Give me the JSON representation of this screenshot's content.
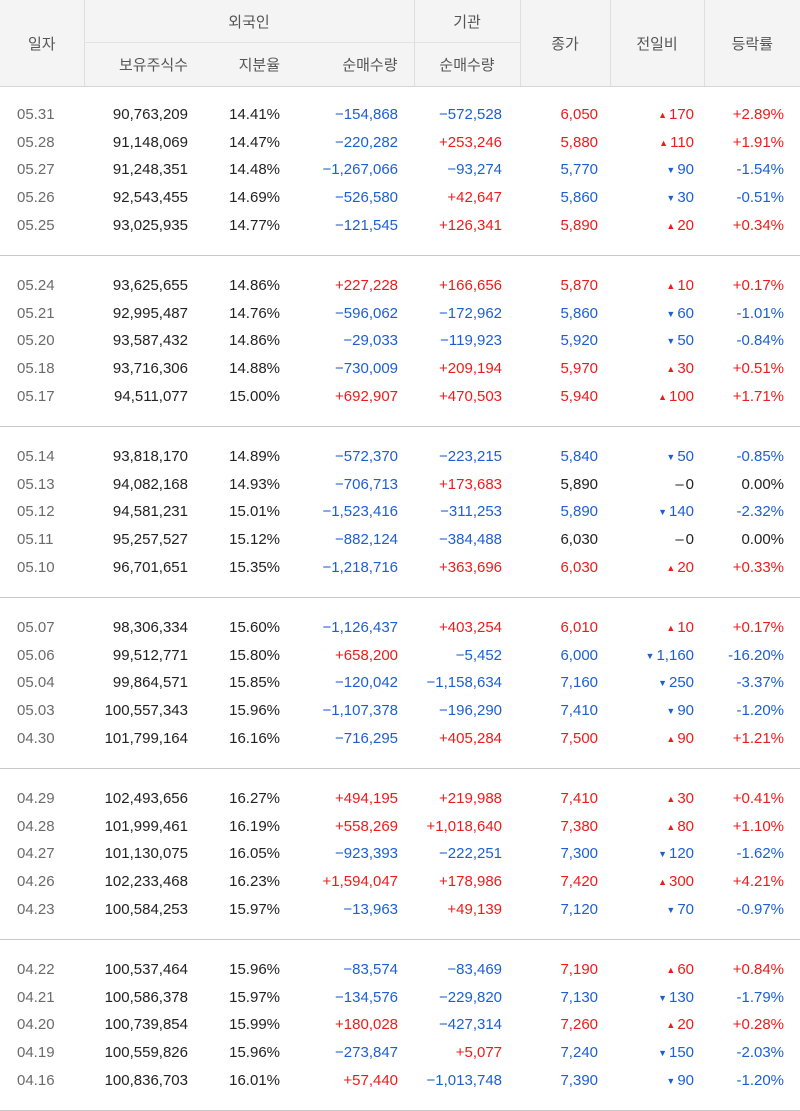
{
  "headers": {
    "date": "일자",
    "foreign": "외국인",
    "institution": "기관",
    "holdings": "보유주식수",
    "ratio": "지분율",
    "foreign_net": "순매수량",
    "inst_net": "순매수량",
    "close": "종가",
    "change": "전일비",
    "rate": "등락률"
  },
  "colors": {
    "up": "#ee1b1b",
    "down": "#1d5fd3",
    "neutral": "#222222"
  },
  "groups": [
    [
      {
        "date": "05.31",
        "holdings": "90,763,209",
        "ratio": "14.41%",
        "foreign_net": "−154,868",
        "inst_net": "−572,528",
        "close": "6,050",
        "change": "170",
        "rate": "+2.89%",
        "dir": "up"
      },
      {
        "date": "05.28",
        "holdings": "91,148,069",
        "ratio": "14.47%",
        "foreign_net": "−220,282",
        "inst_net": "+253,246",
        "close": "5,880",
        "change": "110",
        "rate": "+1.91%",
        "dir": "up"
      },
      {
        "date": "05.27",
        "holdings": "91,248,351",
        "ratio": "14.48%",
        "foreign_net": "−1,267,066",
        "inst_net": "−93,274",
        "close": "5,770",
        "change": "90",
        "rate": "-1.54%",
        "dir": "down"
      },
      {
        "date": "05.26",
        "holdings": "92,543,455",
        "ratio": "14.69%",
        "foreign_net": "−526,580",
        "inst_net": "+42,647",
        "close": "5,860",
        "change": "30",
        "rate": "-0.51%",
        "dir": "down"
      },
      {
        "date": "05.25",
        "holdings": "93,025,935",
        "ratio": "14.77%",
        "foreign_net": "−121,545",
        "inst_net": "+126,341",
        "close": "5,890",
        "change": "20",
        "rate": "+0.34%",
        "dir": "up"
      }
    ],
    [
      {
        "date": "05.24",
        "holdings": "93,625,655",
        "ratio": "14.86%",
        "foreign_net": "+227,228",
        "inst_net": "+166,656",
        "close": "5,870",
        "change": "10",
        "rate": "+0.17%",
        "dir": "up"
      },
      {
        "date": "05.21",
        "holdings": "92,995,487",
        "ratio": "14.76%",
        "foreign_net": "−596,062",
        "inst_net": "−172,962",
        "close": "5,860",
        "change": "60",
        "rate": "-1.01%",
        "dir": "down"
      },
      {
        "date": "05.20",
        "holdings": "93,587,432",
        "ratio": "14.86%",
        "foreign_net": "−29,033",
        "inst_net": "−119,923",
        "close": "5,920",
        "change": "50",
        "rate": "-0.84%",
        "dir": "down"
      },
      {
        "date": "05.18",
        "holdings": "93,716,306",
        "ratio": "14.88%",
        "foreign_net": "−730,009",
        "inst_net": "+209,194",
        "close": "5,970",
        "change": "30",
        "rate": "+0.51%",
        "dir": "up"
      },
      {
        "date": "05.17",
        "holdings": "94,511,077",
        "ratio": "15.00%",
        "foreign_net": "+692,907",
        "inst_net": "+470,503",
        "close": "5,940",
        "change": "100",
        "rate": "+1.71%",
        "dir": "up"
      }
    ],
    [
      {
        "date": "05.14",
        "holdings": "93,818,170",
        "ratio": "14.89%",
        "foreign_net": "−572,370",
        "inst_net": "−223,215",
        "close": "5,840",
        "change": "50",
        "rate": "-0.85%",
        "dir": "down"
      },
      {
        "date": "05.13",
        "holdings": "94,082,168",
        "ratio": "14.93%",
        "foreign_net": "−706,713",
        "inst_net": "+173,683",
        "close": "5,890",
        "change": "0",
        "rate": "0.00%",
        "dir": "flat"
      },
      {
        "date": "05.12",
        "holdings": "94,581,231",
        "ratio": "15.01%",
        "foreign_net": "−1,523,416",
        "inst_net": "−311,253",
        "close": "5,890",
        "change": "140",
        "rate": "-2.32%",
        "dir": "down"
      },
      {
        "date": "05.11",
        "holdings": "95,257,527",
        "ratio": "15.12%",
        "foreign_net": "−882,124",
        "inst_net": "−384,488",
        "close": "6,030",
        "change": "0",
        "rate": "0.00%",
        "dir": "flat"
      },
      {
        "date": "05.10",
        "holdings": "96,701,651",
        "ratio": "15.35%",
        "foreign_net": "−1,218,716",
        "inst_net": "+363,696",
        "close": "6,030",
        "change": "20",
        "rate": "+0.33%",
        "dir": "up"
      }
    ],
    [
      {
        "date": "05.07",
        "holdings": "98,306,334",
        "ratio": "15.60%",
        "foreign_net": "−1,126,437",
        "inst_net": "+403,254",
        "close": "6,010",
        "change": "10",
        "rate": "+0.17%",
        "dir": "up"
      },
      {
        "date": "05.06",
        "holdings": "99,512,771",
        "ratio": "15.80%",
        "foreign_net": "+658,200",
        "inst_net": "−5,452",
        "close": "6,000",
        "change": "1,160",
        "rate": "-16.20%",
        "dir": "down"
      },
      {
        "date": "05.04",
        "holdings": "99,864,571",
        "ratio": "15.85%",
        "foreign_net": "−120,042",
        "inst_net": "−1,158,634",
        "close": "7,160",
        "change": "250",
        "rate": "-3.37%",
        "dir": "down"
      },
      {
        "date": "05.03",
        "holdings": "100,557,343",
        "ratio": "15.96%",
        "foreign_net": "−1,107,378",
        "inst_net": "−196,290",
        "close": "7,410",
        "change": "90",
        "rate": "-1.20%",
        "dir": "down"
      },
      {
        "date": "04.30",
        "holdings": "101,799,164",
        "ratio": "16.16%",
        "foreign_net": "−716,295",
        "inst_net": "+405,284",
        "close": "7,500",
        "change": "90",
        "rate": "+1.21%",
        "dir": "up"
      }
    ],
    [
      {
        "date": "04.29",
        "holdings": "102,493,656",
        "ratio": "16.27%",
        "foreign_net": "+494,195",
        "inst_net": "+219,988",
        "close": "7,410",
        "change": "30",
        "rate": "+0.41%",
        "dir": "up"
      },
      {
        "date": "04.28",
        "holdings": "101,999,461",
        "ratio": "16.19%",
        "foreign_net": "+558,269",
        "inst_net": "+1,018,640",
        "close": "7,380",
        "change": "80",
        "rate": "+1.10%",
        "dir": "up"
      },
      {
        "date": "04.27",
        "holdings": "101,130,075",
        "ratio": "16.05%",
        "foreign_net": "−923,393",
        "inst_net": "−222,251",
        "close": "7,300",
        "change": "120",
        "rate": "-1.62%",
        "dir": "down"
      },
      {
        "date": "04.26",
        "holdings": "102,233,468",
        "ratio": "16.23%",
        "foreign_net": "+1,594,047",
        "inst_net": "+178,986",
        "close": "7,420",
        "change": "300",
        "rate": "+4.21%",
        "dir": "up"
      },
      {
        "date": "04.23",
        "holdings": "100,584,253",
        "ratio": "15.97%",
        "foreign_net": "−13,963",
        "inst_net": "+49,139",
        "close": "7,120",
        "change": "70",
        "rate": "-0.97%",
        "dir": "down"
      }
    ],
    [
      {
        "date": "04.22",
        "holdings": "100,537,464",
        "ratio": "15.96%",
        "foreign_net": "−83,574",
        "inst_net": "−83,469",
        "close": "7,190",
        "change": "60",
        "rate": "+0.84%",
        "dir": "up"
      },
      {
        "date": "04.21",
        "holdings": "100,586,378",
        "ratio": "15.97%",
        "foreign_net": "−134,576",
        "inst_net": "−229,820",
        "close": "7,130",
        "change": "130",
        "rate": "-1.79%",
        "dir": "down"
      },
      {
        "date": "04.20",
        "holdings": "100,739,854",
        "ratio": "15.99%",
        "foreign_net": "+180,028",
        "inst_net": "−427,314",
        "close": "7,260",
        "change": "20",
        "rate": "+0.28%",
        "dir": "up"
      },
      {
        "date": "04.19",
        "holdings": "100,559,826",
        "ratio": "15.96%",
        "foreign_net": "−273,847",
        "inst_net": "+5,077",
        "close": "7,240",
        "change": "150",
        "rate": "-2.03%",
        "dir": "down"
      },
      {
        "date": "04.16",
        "holdings": "100,836,703",
        "ratio": "16.01%",
        "foreign_net": "+57,440",
        "inst_net": "−1,013,748",
        "close": "7,390",
        "change": "90",
        "rate": "-1.20%",
        "dir": "down"
      }
    ]
  ]
}
